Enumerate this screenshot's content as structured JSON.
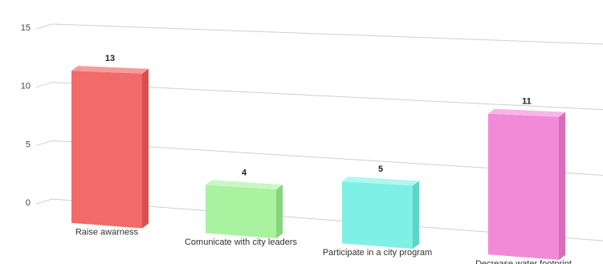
{
  "chart_data": {
    "type": "bar",
    "categories": [
      "Raise awarness",
      "Comunicate with city leaders",
      "Participate in a city program",
      "Decrease water footprint"
    ],
    "values": [
      13,
      4,
      5,
      11
    ],
    "value_labels": [
      "13",
      "4",
      "5",
      "11"
    ],
    "ylim": [
      0,
      15
    ],
    "yticks": [
      0,
      5,
      10,
      15
    ],
    "ytick_labels": [
      "0",
      "5",
      "10",
      "15"
    ],
    "grid": true,
    "three_d": true,
    "colors": [
      "#f26a6a",
      "#a8f2a0",
      "#7ff0e6",
      "#f28ad8"
    ],
    "side_colors": [
      "#d94f4f",
      "#86d67e",
      "#5ed4c8",
      "#d96cbd"
    ],
    "top_colors": [
      "#f79a9a",
      "#c9f7c3",
      "#b0f7f1",
      "#f7b5e7"
    ]
  }
}
